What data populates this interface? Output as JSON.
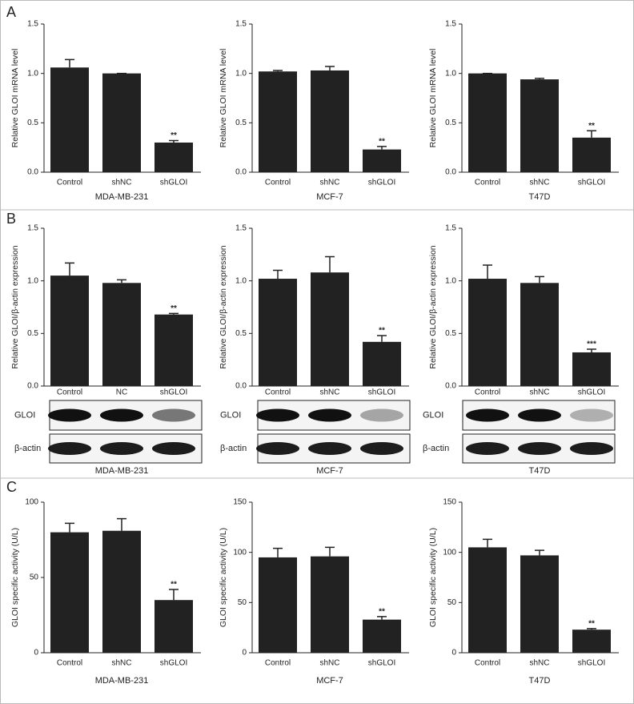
{
  "panel_labels": [
    "A",
    "B",
    "C"
  ],
  "blots": [
    [
      "GLOI",
      "β-actin"
    ],
    [
      "GLOI",
      "β-actin"
    ],
    [
      "GLOI",
      "β-actin"
    ]
  ],
  "chart_data": [
    {
      "type": "bar",
      "ylabel": "Relative GLOI mRNA level",
      "xlabel": "MDA-MB-231",
      "categories": [
        "Control",
        "shNC",
        "shGLOI"
      ],
      "values": [
        1.06,
        1.0,
        0.3
      ],
      "errors": [
        0.08,
        0,
        0.02
      ],
      "annotations": [
        null,
        null,
        "**"
      ],
      "color": "#222222",
      "ylim": [
        0,
        1.5
      ],
      "yticks": [
        {
          "value": 0,
          "label": "0.0"
        },
        0.5,
        {
          "value": 1,
          "label": "1.0"
        },
        1.5
      ]
    },
    {
      "type": "bar",
      "ylabel": "Relative GLOI mRNA level",
      "xlabel": "MCF-7",
      "categories": [
        "Control",
        "shNC",
        "shGLOI"
      ],
      "values": [
        1.02,
        1.03,
        0.23
      ],
      "errors": [
        0.01,
        0.04,
        0.03
      ],
      "annotations": [
        null,
        null,
        "**"
      ],
      "color": "#222222",
      "ylim": [
        0,
        1.5
      ],
      "yticks": [
        {
          "value": 0,
          "label": "0.0"
        },
        0.5,
        {
          "value": 1,
          "label": "1.0"
        },
        1.5
      ]
    },
    {
      "type": "bar",
      "ylabel": "Relative GLOI mRNA level",
      "xlabel": "T47D",
      "categories": [
        "Control",
        "shNC",
        "shGLOI"
      ],
      "values": [
        1.0,
        0.94,
        0.35
      ],
      "errors": [
        0,
        0.01,
        0.07
      ],
      "annotations": [
        null,
        null,
        "**"
      ],
      "color": "#222222",
      "ylim": [
        0,
        1.5
      ],
      "yticks": [
        {
          "value": 0,
          "label": "0.0"
        },
        0.5,
        {
          "value": 1,
          "label": "1.0"
        },
        1.5
      ]
    },
    {
      "type": "bar",
      "ylabel": "Relative GLOI/β-actin expression",
      "xlabel": "MDA-MB-231",
      "categories": [
        "Control",
        "NC",
        "shGLOI"
      ],
      "values": [
        1.05,
        0.98,
        0.68
      ],
      "errors": [
        0.12,
        0.03,
        0.01
      ],
      "annotations": [
        null,
        null,
        "**"
      ],
      "color": "#222222",
      "ylim": [
        0,
        1.5
      ],
      "yticks": [
        {
          "value": 0,
          "label": "0.0"
        },
        0.5,
        {
          "value": 1,
          "label": "1.0"
        },
        1.5
      ]
    },
    {
      "type": "bar",
      "ylabel": "Relative GLOI/β-actin expression",
      "xlabel": "MCF-7",
      "categories": [
        "Control",
        "shNC",
        "shGLOI"
      ],
      "values": [
        1.02,
        1.08,
        0.42
      ],
      "errors": [
        0.08,
        0.15,
        0.06
      ],
      "annotations": [
        null,
        null,
        "**"
      ],
      "color": "#222222",
      "ylim": [
        0,
        1.5
      ],
      "yticks": [
        {
          "value": 0,
          "label": "0.0"
        },
        0.5,
        {
          "value": 1,
          "label": "1.0"
        },
        1.5
      ]
    },
    {
      "type": "bar",
      "ylabel": "Relative GLOI/β-actin expression",
      "xlabel": "T47D",
      "categories": [
        "Control",
        "shNC",
        "shGLOI"
      ],
      "values": [
        1.02,
        0.98,
        0.32
      ],
      "errors": [
        0.13,
        0.06,
        0.03
      ],
      "annotations": [
        null,
        null,
        "***"
      ],
      "color": "#222222",
      "ylim": [
        0,
        1.5
      ],
      "yticks": [
        {
          "value": 0,
          "label": "0.0"
        },
        0.5,
        {
          "value": 1,
          "label": "1.0"
        },
        1.5
      ]
    },
    {
      "type": "bar",
      "ylabel": "GLOI specific activity (U/L)",
      "xlabel": "MDA-MB-231",
      "categories": [
        "Control",
        "shNC",
        "shGLOI"
      ],
      "values": [
        80,
        81,
        35
      ],
      "errors": [
        6,
        8,
        7
      ],
      "annotations": [
        null,
        null,
        "**"
      ],
      "color": "#222222",
      "ylim": [
        0,
        100
      ],
      "yticks": [
        0,
        50,
        100
      ]
    },
    {
      "type": "bar",
      "ylabel": "GLOI specific activity (U/L)",
      "xlabel": "MCF-7",
      "categories": [
        "Control",
        "shNC",
        "shGLOI"
      ],
      "values": [
        95,
        96,
        33
      ],
      "errors": [
        9,
        9,
        3
      ],
      "annotations": [
        null,
        null,
        "**"
      ],
      "color": "#222222",
      "ylim": [
        0,
        150
      ],
      "yticks": [
        0,
        50,
        100,
        150
      ]
    },
    {
      "type": "bar",
      "ylabel": "GLOI specific activity (U/L)",
      "xlabel": "T47D",
      "categories": [
        "Control",
        "shNC",
        "shGLOI"
      ],
      "values": [
        105,
        97,
        23
      ],
      "errors": [
        8,
        5,
        1
      ],
      "annotations": [
        null,
        null,
        "**"
      ],
      "color": "#222222",
      "ylim": [
        0,
        150
      ],
      "yticks": [
        0,
        50,
        100,
        150
      ]
    }
  ]
}
